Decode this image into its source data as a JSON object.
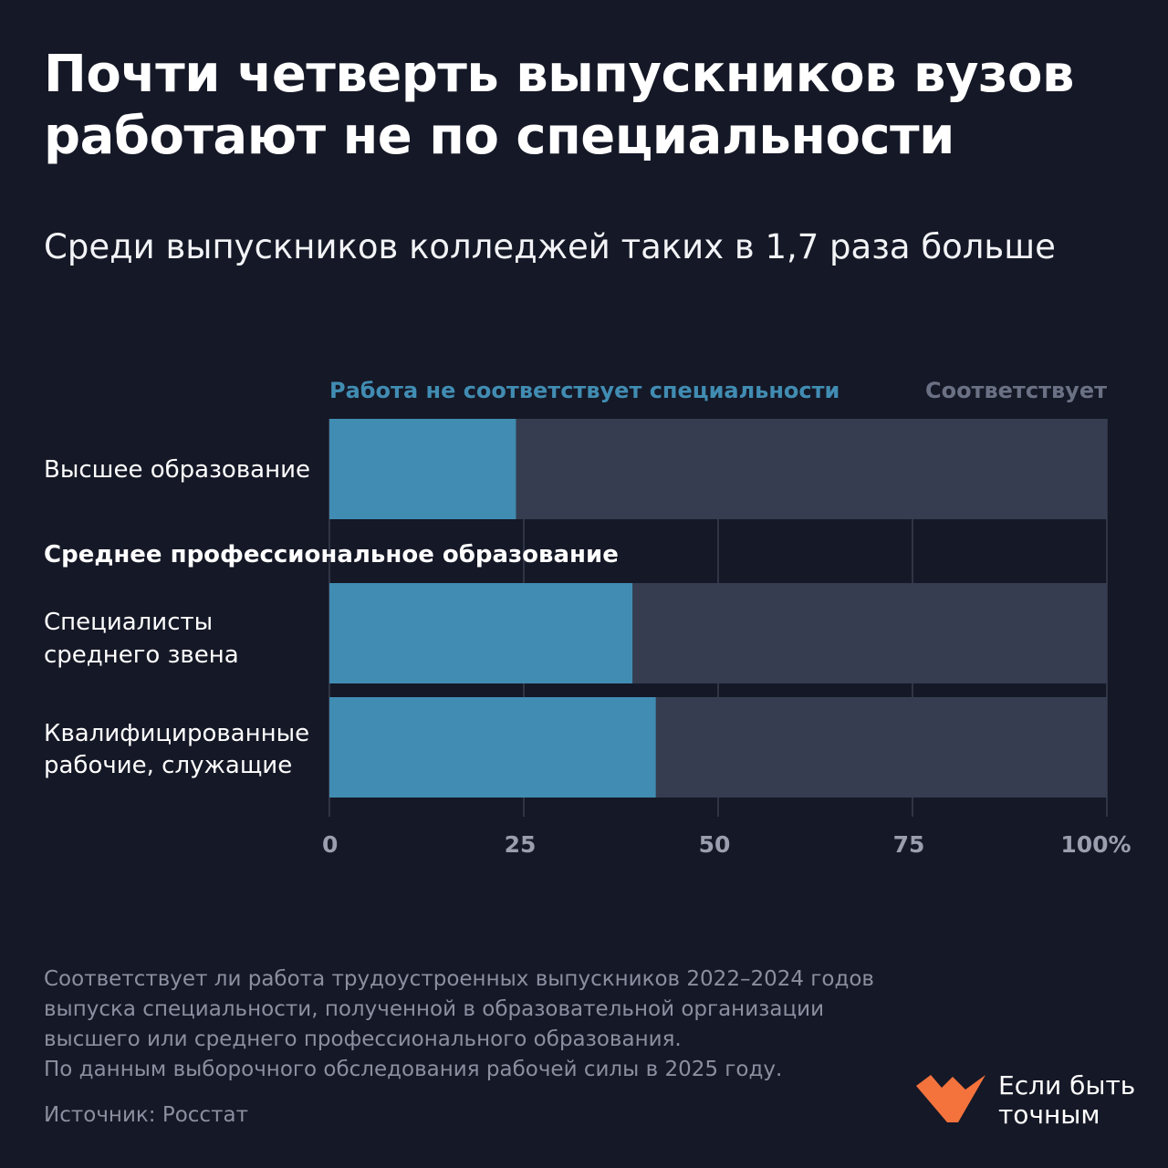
{
  "header": {
    "title_line1": "Почти четверть выпускников вузов",
    "title_line2": "работают не по специальности",
    "subtitle": "Среди выпускников колледжей таких в 1,7 раза больше"
  },
  "chart_data": {
    "type": "bar",
    "orientation": "horizontal",
    "stacked": true,
    "categories": [
      "Высшее образование",
      "Специалисты среднего звена",
      "Квалифицированные рабочие, служащие"
    ],
    "category_lines": [
      [
        "Высшее образование"
      ],
      [
        "Специалисты",
        "среднего звена"
      ],
      [
        "Квалифицированные",
        "рабочие, служащие"
      ]
    ],
    "group_label": "Среднее профессиональное образование",
    "series": [
      {
        "name": "Работа не соответствует специальности",
        "values": [
          24,
          39,
          42
        ],
        "color": "#418cb2"
      },
      {
        "name": "Соответствует",
        "values": [
          76,
          61,
          58
        ],
        "color": "#363d51"
      }
    ],
    "xlim": [
      0,
      100
    ],
    "ticks": [
      0,
      25,
      50,
      75,
      100
    ],
    "tick_labels": [
      "0",
      "25",
      "50",
      "75",
      "100%"
    ],
    "grid": true,
    "legend_placement": "top"
  },
  "notes": {
    "lines": [
      "Соответствует ли работа трудоустроенных выпускников 2022–2024 годов",
      "выпуска специальности, полученной в образовательной организации",
      "высшего или среднего профессионального образования.",
      "По данным выборочного обследования рабочей силы в 2025 году."
    ],
    "source": "Источник: Росстат"
  },
  "logo": {
    "line1": "Если быть",
    "line2": "точным",
    "color": "#f4733d",
    "icon": "heart-check-logo-icon"
  }
}
